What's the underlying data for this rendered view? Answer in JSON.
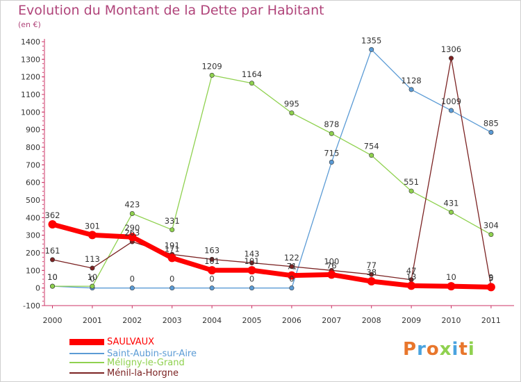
{
  "chart_data": {
    "type": "line",
    "title": "Evolution du Montant de la Dette par Habitant",
    "subtitle": "(en €)",
    "xlabel": "",
    "ylabel": "",
    "ylim": [
      -100,
      1400
    ],
    "y_ticks": [
      "-100",
      "0",
      "100",
      "200",
      "300",
      "400",
      "500",
      "600",
      "700",
      "800",
      "900",
      "1000",
      "1100",
      "1200",
      "1300",
      "1400"
    ],
    "categories": [
      "2000",
      "2001",
      "2002",
      "2003",
      "2004",
      "2005",
      "2006",
      "2007",
      "2008",
      "2009",
      "2010",
      "2011"
    ],
    "series": [
      {
        "name": "SAULVAUX",
        "color": "#ff0000",
        "values": [
          362,
          301,
          290,
          171,
          101,
          101,
          71,
          76,
          38,
          13,
          10,
          5
        ],
        "labels": [
          "362",
          "301",
          "290",
          "171",
          "101",
          "101",
          "71",
          "76",
          "38",
          "13",
          "10",
          "5"
        ]
      },
      {
        "name": "Saint-Aubin-sur-Aire",
        "color": "#5b9bd5",
        "values": [
          10,
          0,
          0,
          0,
          0,
          0,
          0,
          715,
          1355,
          1128,
          1009,
          885
        ],
        "labels": [
          "10",
          "0",
          "0",
          "0",
          "0",
          "0",
          "0",
          "715",
          "1355",
          "1128",
          "1009",
          "885"
        ]
      },
      {
        "name": "Méligny-le-Grand",
        "color": "#8fd14f",
        "values": [
          10,
          10,
          423,
          331,
          1209,
          1164,
          995,
          878,
          754,
          551,
          431,
          304
        ],
        "labels": [
          "10",
          "10",
          "423",
          "331",
          "1209",
          "1164",
          "995",
          "878",
          "754",
          "551",
          "431",
          "304"
        ]
      },
      {
        "name": "Ménil-la-Horgne",
        "color": "#7b2222",
        "values": [
          161,
          113,
          263,
          191,
          163,
          143,
          122,
          100,
          77,
          47,
          1306,
          9
        ],
        "labels": [
          "161",
          "113",
          "263",
          "191",
          "163",
          "143",
          "122",
          "100",
          "77",
          "47",
          "1306",
          "9"
        ]
      }
    ],
    "legend_position": "bottom-left",
    "grid": false
  },
  "logo": {
    "text": "Proxiti",
    "colors": [
      "#e8762c",
      "#4aa3df",
      "#e8762c",
      "#8fd14f",
      "#4aa3df",
      "#e8762c",
      "#8fd14f"
    ]
  }
}
